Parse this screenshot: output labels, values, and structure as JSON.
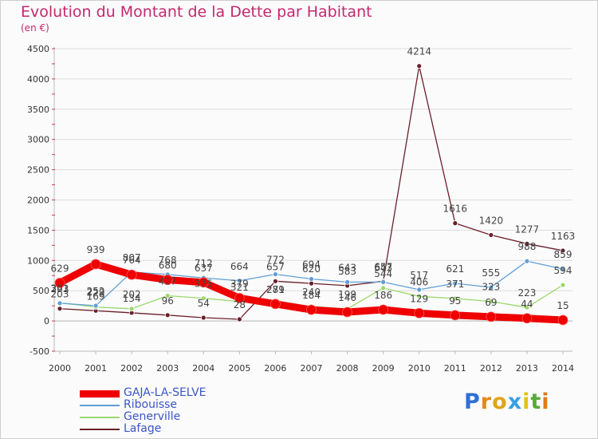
{
  "header": {
    "title": "Evolution du Montant de la Dette par Habitant",
    "unit": "(en €)"
  },
  "chart_data": {
    "type": "line",
    "title": "Evolution du Montant de la Dette par Habitant",
    "ylabel": "(en €)",
    "xlabel": "",
    "x": [
      "2000",
      "2001",
      "2002",
      "2003",
      "2004",
      "2005",
      "2006",
      "2007",
      "2008",
      "2009",
      "2010",
      "2011",
      "2012",
      "2013",
      "2014"
    ],
    "ylim": [
      -500,
      4500
    ],
    "yticks": [
      "-500",
      "0",
      "500",
      "1000",
      "1500",
      "2000",
      "2500",
      "3000",
      "3500",
      "4000",
      "4500"
    ],
    "grid": "horizontal",
    "legend_position": "bottom-left",
    "series": [
      {
        "name": "GAJA-LA-SELVE",
        "color": "#ee0000",
        "width": 9,
        "values": [
          629,
          939,
          764,
          680,
          637,
          379,
          281,
          184,
          146,
          186,
          129,
          95,
          69,
          44,
          15
        ]
      },
      {
        "name": "Ribouisse",
        "color": "#5f9fd8",
        "width": 1.3,
        "values": [
          293,
          252,
          807,
          768,
          712,
          664,
          772,
          694,
          643,
          643,
          517,
          621,
          555,
          988,
          859
        ]
      },
      {
        "name": "Generville",
        "color": "#9ad86a",
        "width": 1.3,
        "values": [
          301,
          229,
          202,
          417,
          375,
          321,
          279,
          240,
          199,
          544,
          406,
          371,
          323,
          223,
          594
        ]
      },
      {
        "name": "Lafage",
        "color": "#6a1f2a",
        "width": 1.3,
        "values": [
          203,
          169,
          134,
          96,
          54,
          28,
          657,
          620,
          583,
          657,
          4214,
          1616,
          1420,
          1277,
          1163
        ]
      }
    ]
  },
  "legend": [
    {
      "label": "GAJA-LA-SELVE",
      "color": "#ee0000"
    },
    {
      "label": "Ribouisse",
      "color": "#5f9fd8"
    },
    {
      "label": "Generville",
      "color": "#9ad86a"
    },
    {
      "label": "Lafage",
      "color": "#6a1f2a"
    }
  ],
  "logo": {
    "letters": [
      "P",
      "r",
      "o",
      "x",
      "i",
      "t",
      "i"
    ],
    "colors": [
      "#2f6fd6",
      "#e08a1a",
      "#e0a41a",
      "#3aa0e0",
      "#e3c21a",
      "#5aa83a",
      "#e07a1a"
    ]
  }
}
